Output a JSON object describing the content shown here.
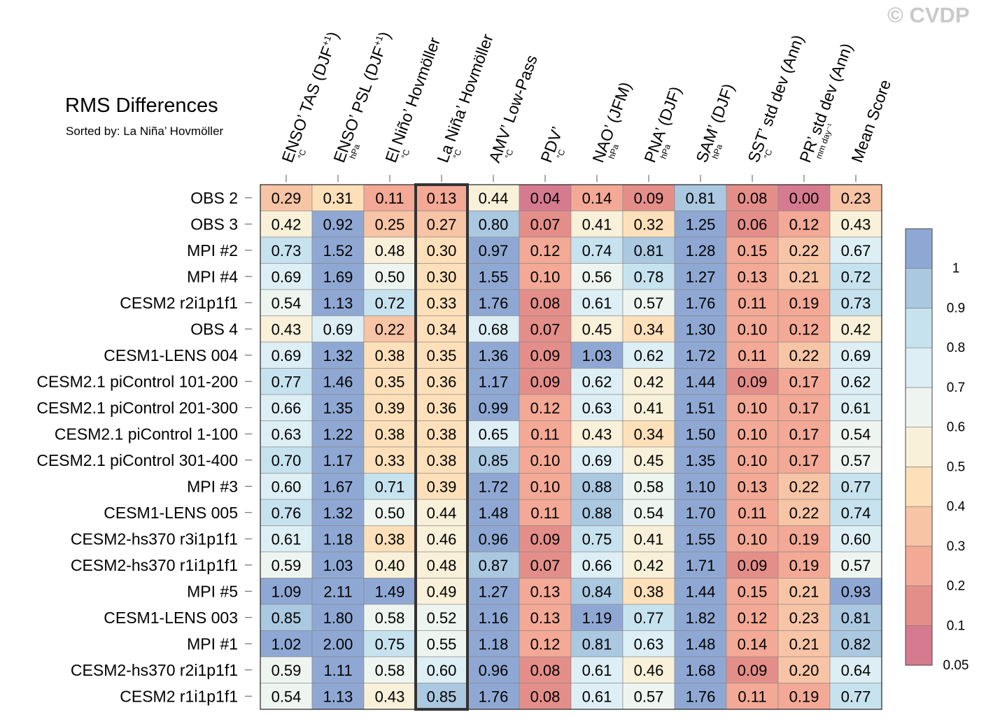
{
  "watermark": "© CVDP",
  "chart_data": {
    "type": "heatmap",
    "title": "RMS Differences",
    "subtitle": "Sorted by: La Niña’ Hovmöller",
    "highlighted_column": "La Niña’ Hovmöller",
    "columns": [
      {
        "name": "ENSO’ TAS (DJF",
        "sup": "+1",
        "tail": ")",
        "unit": "°C"
      },
      {
        "name": "ENSO’ PSL (DJF",
        "sup": "+1",
        "tail": ")",
        "unit": "hPa"
      },
      {
        "name": "El Niño’ Hovmöller",
        "sup": "",
        "tail": "",
        "unit": "°C"
      },
      {
        "name": "La Niña’ Hovmöller",
        "sup": "",
        "tail": "",
        "unit": "°C"
      },
      {
        "name": "AMV’ Low-Pass",
        "sup": "",
        "tail": "",
        "unit": "°C"
      },
      {
        "name": "PDV’",
        "sup": "",
        "tail": "",
        "unit": "°C"
      },
      {
        "name": "NAO’ (JFM)",
        "sup": "",
        "tail": "",
        "unit": "hPa"
      },
      {
        "name": "PNA’ (DJF)",
        "sup": "",
        "tail": "",
        "unit": "hPa"
      },
      {
        "name": "SAM’ (DJF)",
        "sup": "",
        "tail": "",
        "unit": "hPa"
      },
      {
        "name": "SST’ std dev (Ann)",
        "sup": "",
        "tail": "",
        "unit": "°C"
      },
      {
        "name": "PR’ std dev (Ann)",
        "sup": "",
        "tail": "",
        "unit": "mm day⁻¹"
      },
      {
        "name": "Mean Score",
        "sup": "",
        "tail": "",
        "unit": ""
      }
    ],
    "rows": [
      "OBS 2",
      "OBS 3",
      "MPI #2",
      "MPI #4",
      "CESM2 r2i1p1f1",
      "OBS 4",
      "CESM1-LENS 004",
      "CESM2.1 piControl 101-200",
      "CESM2.1 piControl 201-300",
      "CESM2.1 piControl 1-100",
      "CESM2.1 piControl 301-400",
      "MPI #3",
      "CESM1-LENS 005",
      "CESM2-hs370 r3i1p1f1",
      "CESM2-hs370 r1i1p1f1",
      "MPI #5",
      "CESM1-LENS 003",
      "MPI #1",
      "CESM2-hs370 r2i1p1f1",
      "CESM2 r1i1p1f1"
    ],
    "values": [
      [
        "0.29",
        "0.31",
        "0.11",
        "0.13",
        "0.44",
        "0.04",
        "0.14",
        "0.09",
        "0.81",
        "0.08",
        "0.00",
        "0.23"
      ],
      [
        "0.42",
        "0.92",
        "0.25",
        "0.27",
        "0.80",
        "0.07",
        "0.41",
        "0.32",
        "1.25",
        "0.06",
        "0.12",
        "0.43"
      ],
      [
        "0.73",
        "1.52",
        "0.48",
        "0.30",
        "0.97",
        "0.12",
        "0.74",
        "0.81",
        "1.28",
        "0.15",
        "0.22",
        "0.67"
      ],
      [
        "0.69",
        "1.69",
        "0.50",
        "0.30",
        "1.55",
        "0.10",
        "0.56",
        "0.78",
        "1.27",
        "0.13",
        "0.21",
        "0.72"
      ],
      [
        "0.54",
        "1.13",
        "0.72",
        "0.33",
        "1.76",
        "0.08",
        "0.61",
        "0.57",
        "1.76",
        "0.11",
        "0.19",
        "0.73"
      ],
      [
        "0.43",
        "0.69",
        "0.22",
        "0.34",
        "0.68",
        "0.07",
        "0.45",
        "0.34",
        "1.30",
        "0.10",
        "0.12",
        "0.42"
      ],
      [
        "0.69",
        "1.32",
        "0.38",
        "0.35",
        "1.36",
        "0.09",
        "1.03",
        "0.62",
        "1.72",
        "0.11",
        "0.22",
        "0.69"
      ],
      [
        "0.77",
        "1.46",
        "0.35",
        "0.36",
        "1.17",
        "0.09",
        "0.62",
        "0.42",
        "1.44",
        "0.09",
        "0.17",
        "0.62"
      ],
      [
        "0.66",
        "1.35",
        "0.39",
        "0.36",
        "0.99",
        "0.12",
        "0.63",
        "0.41",
        "1.51",
        "0.10",
        "0.17",
        "0.61"
      ],
      [
        "0.63",
        "1.22",
        "0.38",
        "0.38",
        "0.65",
        "0.11",
        "0.43",
        "0.34",
        "1.50",
        "0.10",
        "0.17",
        "0.54"
      ],
      [
        "0.70",
        "1.17",
        "0.33",
        "0.38",
        "0.85",
        "0.10",
        "0.69",
        "0.45",
        "1.35",
        "0.10",
        "0.17",
        "0.57"
      ],
      [
        "0.60",
        "1.67",
        "0.71",
        "0.39",
        "1.72",
        "0.10",
        "0.88",
        "0.58",
        "1.10",
        "0.13",
        "0.22",
        "0.77"
      ],
      [
        "0.76",
        "1.32",
        "0.50",
        "0.44",
        "1.48",
        "0.11",
        "0.88",
        "0.54",
        "1.70",
        "0.11",
        "0.22",
        "0.74"
      ],
      [
        "0.61",
        "1.18",
        "0.38",
        "0.46",
        "0.96",
        "0.09",
        "0.75",
        "0.41",
        "1.55",
        "0.10",
        "0.19",
        "0.60"
      ],
      [
        "0.59",
        "1.03",
        "0.40",
        "0.48",
        "0.87",
        "0.07",
        "0.66",
        "0.42",
        "1.71",
        "0.09",
        "0.19",
        "0.57"
      ],
      [
        "1.09",
        "2.11",
        "1.49",
        "0.49",
        "1.27",
        "0.13",
        "0.84",
        "0.38",
        "1.44",
        "0.15",
        "0.21",
        "0.93"
      ],
      [
        "0.85",
        "1.80",
        "0.58",
        "0.52",
        "1.16",
        "0.13",
        "1.19",
        "0.77",
        "1.82",
        "0.12",
        "0.23",
        "0.81"
      ],
      [
        "1.02",
        "2.00",
        "0.75",
        "0.55",
        "1.18",
        "0.12",
        "0.81",
        "0.63",
        "1.48",
        "0.14",
        "0.21",
        "0.82"
      ],
      [
        "0.59",
        "1.11",
        "0.58",
        "0.60",
        "0.96",
        "0.08",
        "0.61",
        "0.46",
        "1.68",
        "0.09",
        "0.20",
        "0.64"
      ],
      [
        "0.54",
        "1.13",
        "0.43",
        "0.85",
        "1.76",
        "0.08",
        "0.61",
        "0.57",
        "1.76",
        "0.11",
        "0.19",
        "0.77"
      ]
    ],
    "colorbar": {
      "boundaries": [
        0.05,
        0.1,
        0.2,
        0.3,
        0.4,
        0.5,
        0.6,
        0.7,
        0.8,
        0.9,
        1
      ],
      "tick_labels": [
        "1",
        "0.9",
        "0.8",
        "0.7",
        "0.6",
        "0.5",
        "0.4",
        "0.3",
        "0.2",
        "0.1",
        "0.05"
      ],
      "colors_low_to_high": [
        "#d67b8f",
        "#e48e8a",
        "#f3a995",
        "#f8c4a6",
        "#fde0b9",
        "#f8f0d8",
        "#eef4ef",
        "#ddeef5",
        "#c7e2ef",
        "#abc8e1",
        "#8fa8d3"
      ]
    }
  }
}
